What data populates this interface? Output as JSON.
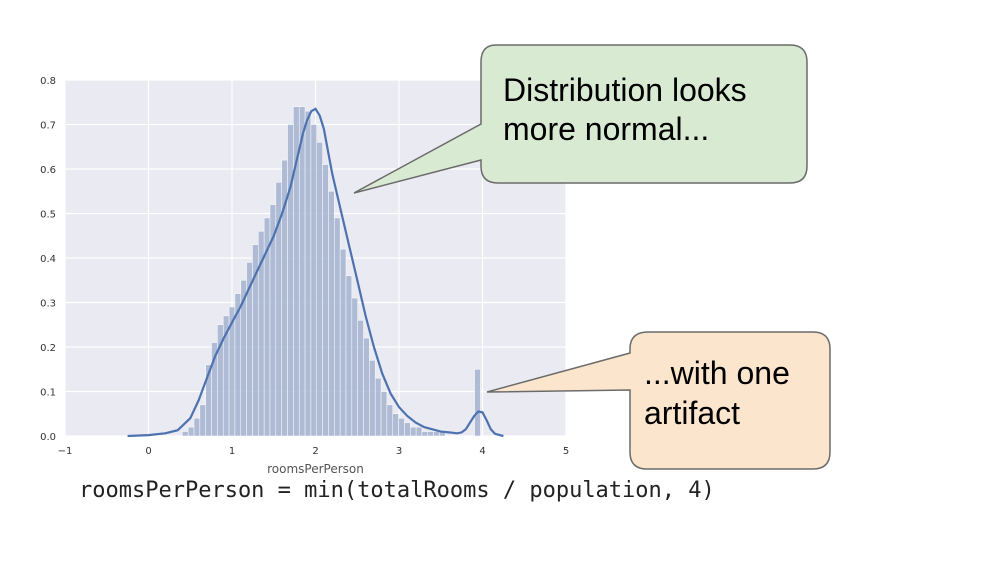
{
  "chart_data": {
    "type": "bar",
    "xlabel": "roomsPerPerson",
    "ylabel": "",
    "xlim": [
      -1,
      5
    ],
    "ylim": [
      0,
      0.8
    ],
    "xticks": [
      "−1",
      "0",
      "1",
      "2",
      "3",
      "4",
      "5"
    ],
    "yticks": [
      "0.0",
      "0.1",
      "0.2",
      "0.3",
      "0.4",
      "0.5",
      "0.6",
      "0.7",
      "0.8"
    ],
    "grid": true,
    "bin_width": 0.07,
    "histogram": {
      "x": [
        0.44,
        0.51,
        0.58,
        0.65,
        0.72,
        0.79,
        0.86,
        0.93,
        1.0,
        1.07,
        1.14,
        1.21,
        1.28,
        1.35,
        1.42,
        1.49,
        1.56,
        1.63,
        1.7,
        1.77,
        1.84,
        1.91,
        1.98,
        2.05,
        2.12,
        2.19,
        2.26,
        2.33,
        2.4,
        2.47,
        2.54,
        2.61,
        2.68,
        2.75,
        2.82,
        2.89,
        2.96,
        3.03,
        3.1,
        3.17,
        3.24,
        3.31,
        3.38,
        3.45,
        3.52,
        3.59,
        3.66,
        3.73,
        3.8,
        3.87,
        3.94
      ],
      "values": [
        0.01,
        0.02,
        0.04,
        0.07,
        0.16,
        0.21,
        0.25,
        0.27,
        0.29,
        0.32,
        0.35,
        0.39,
        0.43,
        0.46,
        0.49,
        0.52,
        0.57,
        0.62,
        0.7,
        0.74,
        0.74,
        0.73,
        0.7,
        0.66,
        0.61,
        0.55,
        0.49,
        0.42,
        0.36,
        0.31,
        0.26,
        0.22,
        0.17,
        0.13,
        0.1,
        0.07,
        0.05,
        0.04,
        0.03,
        0.02,
        0.02,
        0.01,
        0.01,
        0.01,
        0.01,
        0.0,
        0.0,
        0.0,
        0.0,
        0.0,
        0.15
      ]
    },
    "kde": {
      "x": [
        -0.25,
        0.0,
        0.2,
        0.35,
        0.5,
        0.6,
        0.7,
        0.8,
        0.9,
        1.0,
        1.1,
        1.2,
        1.3,
        1.4,
        1.5,
        1.6,
        1.7,
        1.8,
        1.85,
        1.9,
        1.95,
        2.0,
        2.05,
        2.1,
        2.15,
        2.2,
        2.3,
        2.4,
        2.5,
        2.6,
        2.7,
        2.8,
        2.9,
        3.0,
        3.1,
        3.2,
        3.3,
        3.4,
        3.5,
        3.6,
        3.7,
        3.75,
        3.8,
        3.85,
        3.9,
        3.95,
        4.0,
        4.05,
        4.1,
        4.15,
        4.25
      ],
      "values": [
        0.0,
        0.002,
        0.006,
        0.013,
        0.04,
        0.08,
        0.13,
        0.18,
        0.22,
        0.255,
        0.29,
        0.33,
        0.37,
        0.41,
        0.45,
        0.5,
        0.56,
        0.64,
        0.68,
        0.71,
        0.73,
        0.735,
        0.72,
        0.69,
        0.64,
        0.59,
        0.51,
        0.43,
        0.35,
        0.27,
        0.2,
        0.14,
        0.095,
        0.065,
        0.045,
        0.03,
        0.02,
        0.015,
        0.01,
        0.008,
        0.006,
        0.008,
        0.015,
        0.03,
        0.045,
        0.055,
        0.053,
        0.035,
        0.015,
        0.005,
        0.0
      ]
    }
  },
  "callouts": {
    "top": {
      "lines": [
        "Distribution looks",
        "more normal..."
      ],
      "fill": "#d9ead3"
    },
    "bottom": {
      "lines": [
        "...with one",
        "artifact"
      ],
      "fill": "#fce5cd"
    }
  },
  "code_text": "roomsPerPerson = min(totalRooms / population, 4)",
  "colors": {
    "plot_bg": "#eaeaf2",
    "bar": "#a9b7d2",
    "kde": "#4c72b0"
  }
}
